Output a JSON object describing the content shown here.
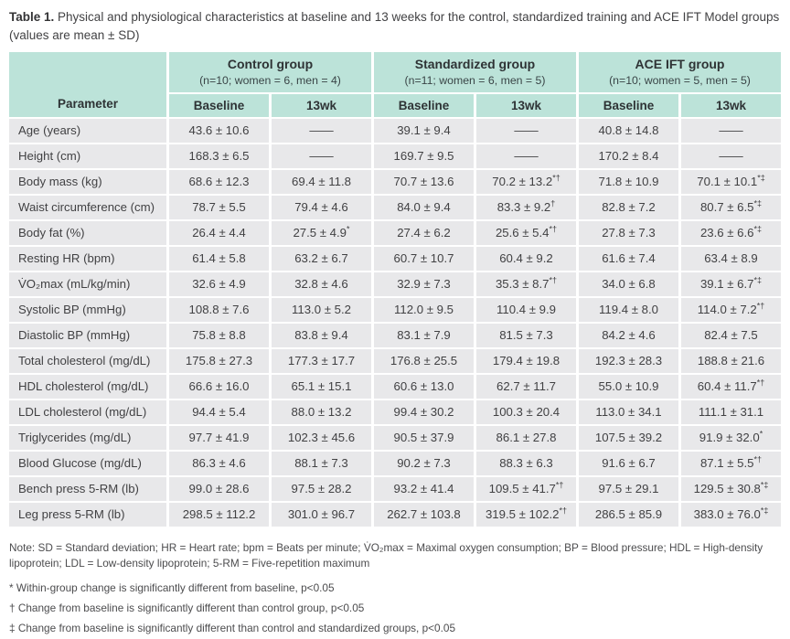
{
  "caption": {
    "label": "Table 1.",
    "text": "Physical and physiological characteristics at baseline and 13 weeks for the control, standardized training and ACE IFT Model groups (values are mean ± SD)"
  },
  "colors": {
    "header_bg": "#bce3d9",
    "row_bg": "#e8e8ea",
    "text": "#3d3d3f"
  },
  "table": {
    "parameter_header": "Parameter",
    "groups": [
      {
        "name": "Control group",
        "subtitle": "(n=10; women = 6, men = 4)"
      },
      {
        "name": "Standardized group",
        "subtitle": "(n=11; women = 6, men = 5)"
      },
      {
        "name": "ACE IFT group",
        "subtitle": "(n=10; women = 5, men = 5)"
      }
    ],
    "sub_headers": [
      "Baseline",
      "13wk",
      "Baseline",
      "13wk",
      "Baseline",
      "13wk"
    ],
    "rows": [
      {
        "parameter": "Age (years)",
        "values": [
          "43.6 ± 10.6",
          "——",
          "39.1 ± 9.4",
          "——",
          "40.8 ± 14.8",
          "——"
        ]
      },
      {
        "parameter": "Height (cm)",
        "values": [
          "168.3 ± 6.5",
          "——",
          "169.7 ± 9.5",
          "——",
          "170.2 ± 8.4",
          "——"
        ]
      },
      {
        "parameter": "Body mass (kg)",
        "values": [
          "68.6 ± 12.3",
          "69.4 ± 11.8",
          "70.7 ± 13.6",
          "70.2 ± 13.2*†",
          "71.8 ± 10.9",
          "70.1 ± 10.1*‡"
        ]
      },
      {
        "parameter": "Waist circumference (cm)",
        "values": [
          "78.7 ± 5.5",
          "79.4 ± 4.6",
          "84.0 ± 9.4",
          "83.3 ± 9.2†",
          "82.8 ± 7.2",
          "80.7 ± 6.5*‡"
        ]
      },
      {
        "parameter": "Body fat (%)",
        "values": [
          "26.4 ± 4.4",
          "27.5 ± 4.9*",
          "27.4 ± 6.2",
          "25.6 ± 5.4*†",
          "27.8 ± 7.3",
          "23.6 ± 6.6*‡"
        ]
      },
      {
        "parameter": "Resting HR (bpm)",
        "values": [
          "61.4 ± 5.8",
          "63.2 ± 6.7",
          "60.7 ± 10.7",
          "60.4 ± 9.2",
          "61.6 ± 7.4",
          "63.4 ± 8.9"
        ]
      },
      {
        "parameter": "V̇O₂max (mL/kg/min)",
        "values": [
          "32.6 ± 4.9",
          "32.8 ± 4.6",
          "32.9 ± 7.3",
          "35.3 ± 8.7*†",
          "34.0 ± 6.8",
          "39.1 ± 6.7*‡"
        ]
      },
      {
        "parameter": "Systolic BP (mmHg)",
        "values": [
          "108.8 ± 7.6",
          "113.0 ± 5.2",
          "112.0 ± 9.5",
          "110.4 ± 9.9",
          "119.4 ± 8.0",
          "114.0 ± 7.2*†"
        ]
      },
      {
        "parameter": "Diastolic BP (mmHg)",
        "values": [
          "75.8 ± 8.8",
          "83.8 ± 9.4",
          "83.1 ± 7.9",
          "81.5 ± 7.3",
          "84.2 ± 4.6",
          "82.4 ± 7.5"
        ]
      },
      {
        "parameter": "Total cholesterol (mg/dL)",
        "values": [
          "175.8 ± 27.3",
          "177.3 ± 17.7",
          "176.8 ± 25.5",
          "179.4 ± 19.8",
          "192.3 ± 28.3",
          "188.8 ± 21.6"
        ]
      },
      {
        "parameter": "HDL cholesterol (mg/dL)",
        "values": [
          "66.6 ± 16.0",
          "65.1 ± 15.1",
          "60.6 ± 13.0",
          "62.7 ± 11.7",
          "55.0 ± 10.9",
          "60.4 ± 11.7*†"
        ]
      },
      {
        "parameter": "LDL cholesterol (mg/dL)",
        "values": [
          "94.4 ± 5.4",
          "88.0 ± 13.2",
          "99.4 ± 30.2",
          "100.3 ± 20.4",
          "113.0 ± 34.1",
          "111.1 ± 31.1"
        ]
      },
      {
        "parameter": "Triglycerides (mg/dL)",
        "values": [
          "97.7 ± 41.9",
          "102.3 ± 45.6",
          "90.5 ± 37.9",
          "86.1 ± 27.8",
          "107.5 ± 39.2",
          "91.9 ± 32.0*"
        ]
      },
      {
        "parameter": "Blood Glucose (mg/dL)",
        "values": [
          "86.3 ± 4.6",
          "88.1 ± 7.3",
          "90.2 ± 7.3",
          "88.3 ± 6.3",
          "91.6 ± 6.7",
          "87.1 ± 5.5*†"
        ]
      },
      {
        "parameter": "Bench press 5-RM (lb)",
        "values": [
          "99.0 ± 28.6",
          "97.5 ± 28.2",
          "93.2 ± 41.4",
          "109.5 ± 41.7*†",
          "97.5 ± 29.1",
          "129.5 ± 30.8*‡"
        ]
      },
      {
        "parameter": "Leg press 5-RM (lb)",
        "values": [
          "298.5 ± 112.2",
          "301.0 ± 96.7",
          "262.7 ± 103.8",
          "319.5 ± 102.2*†",
          "286.5 ± 85.9",
          "383.0 ± 76.0*‡"
        ]
      }
    ]
  },
  "notes": {
    "abbreviations": "Note: SD = Standard deviation; HR = Heart rate; bpm = Beats per minute; V̇O₂max = Maximal oxygen consumption; BP = Blood pressure; HDL = High-density lipoprotein; LDL = Low-density lipoprotein; 5-RM = Five-repetition maximum",
    "footnotes": [
      "* Within-group change is significantly different from baseline, p<0.05",
      "† Change from baseline is significantly different than control group, p<0.05",
      "‡ Change from baseline is significantly different than control and standardized groups, p<0.05"
    ]
  }
}
